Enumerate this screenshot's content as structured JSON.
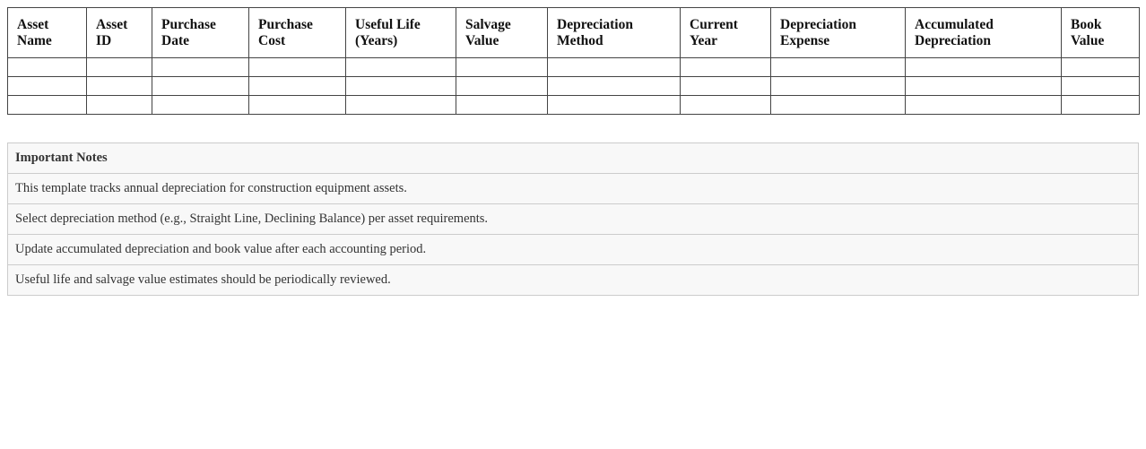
{
  "table": {
    "headers": [
      [
        "Asset",
        "Name"
      ],
      [
        "Asset",
        "ID"
      ],
      [
        "Purchase",
        "Date"
      ],
      [
        "Purchase",
        "Cost"
      ],
      [
        "Useful Life",
        "(Years)"
      ],
      [
        "Salvage",
        "Value"
      ],
      [
        "Depreciation",
        "Method"
      ],
      [
        "Current",
        "Year"
      ],
      [
        "Depreciation",
        "Expense"
      ],
      [
        "Accumulated",
        "Depreciation"
      ],
      [
        "Book",
        "Value"
      ]
    ],
    "rows": [
      [
        "",
        "",
        "",
        "",
        "",
        "",
        "",
        "",
        "",
        "",
        ""
      ],
      [
        "",
        "",
        "",
        "",
        "",
        "",
        "",
        "",
        "",
        "",
        ""
      ],
      [
        "",
        "",
        "",
        "",
        "",
        "",
        "",
        "",
        "",
        "",
        ""
      ]
    ]
  },
  "notes": {
    "title": "Important Notes",
    "items": [
      "This template tracks annual depreciation for construction equipment assets.",
      "Select depreciation method (e.g., Straight Line, Declining Balance) per asset requirements.",
      "Update accumulated depreciation and book value after each accounting period.",
      "Useful life and salvage value estimates should be periodically reviewed."
    ]
  }
}
